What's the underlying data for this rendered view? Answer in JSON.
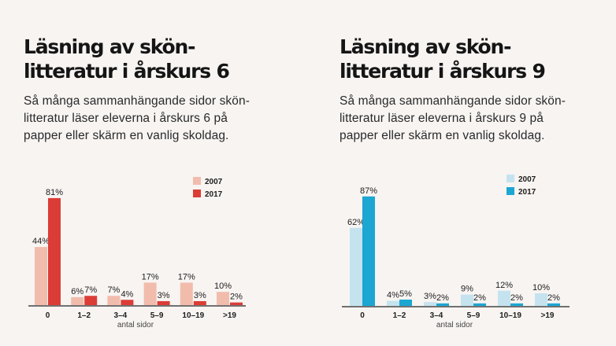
{
  "chart_data": [
    {
      "type": "bar",
      "title": "Läsning av skön-\nlitteratur i årskurs 6",
      "subtitle": "Så många sammanhängande sidor skön-\nlitteratur läser eleverna i årskurs 6 på\npapper eller skärm en vanlig skoldag.",
      "xlabel": "antal sidor",
      "ylabel": "",
      "categories": [
        "0",
        "1–2",
        "3–4",
        "5–9",
        "10–19",
        ">19"
      ],
      "series": [
        {
          "name": "2007",
          "color": "#f2bcac",
          "values": [
            44,
            6,
            7,
            17,
            17,
            10
          ]
        },
        {
          "name": "2017",
          "color": "#dc3c36",
          "values": [
            81,
            7,
            4,
            3,
            3,
            2
          ]
        }
      ],
      "value_suffix": "%",
      "legend_position": "top-right",
      "ylim": [
        0,
        100
      ],
      "grid": false
    },
    {
      "type": "bar",
      "title": "Läsning av skön-\nlitteratur i årskurs 9",
      "subtitle": "Så många sammanhängande sidor skön-\nlitteratur läser eleverna i årskurs 9 på\npapper eller skärm en vanlig skoldag.",
      "xlabel": "antal sidor",
      "ylabel": "",
      "categories": [
        "0",
        "1–2",
        "3–4",
        "5–9",
        "10–19",
        ">19"
      ],
      "series": [
        {
          "name": "2007",
          "color": "#c4e3ef",
          "values": [
            62,
            4,
            3,
            9,
            12,
            10
          ]
        },
        {
          "name": "2017",
          "color": "#1ca6d2",
          "values": [
            87,
            5,
            2,
            2,
            2,
            2
          ]
        }
      ],
      "value_suffix": "%",
      "legend_position": "top-right",
      "ylim": [
        0,
        100
      ],
      "grid": false
    }
  ]
}
